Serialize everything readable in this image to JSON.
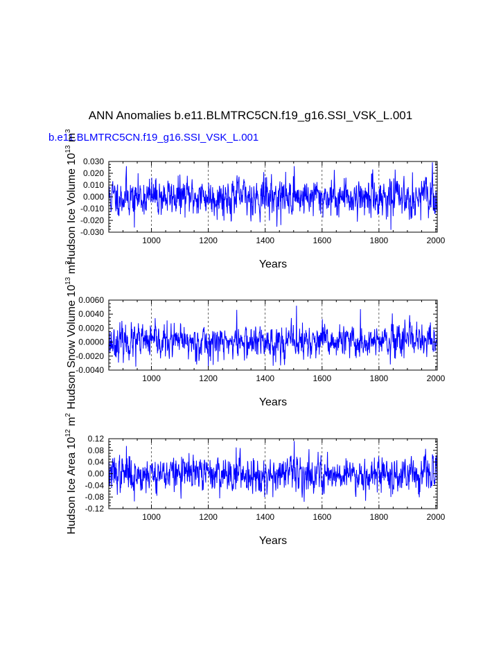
{
  "title": "ANN Anomalies b.e11.BLMTRC5CN.f19_g16.SSI_VSK_L.001",
  "case_label": "b.e11.BLMTRC5CN.f19_g16.SSI_VSK_L.001",
  "series_color": "#0000ff",
  "chart_data": [
    {
      "type": "line",
      "name": "panel-ice-volume",
      "xlabel": "Years",
      "ylabel": "Hudson Ice Volume 10",
      "ylabel_exp": "13",
      "ylabel_units": "m",
      "ylabel_units_exp": "3",
      "xlim": [
        850,
        2005
      ],
      "ylim": [
        -0.03,
        0.03
      ],
      "xticks": [
        1000,
        1200,
        1400,
        1600,
        1800,
        2000
      ],
      "yticks": [
        "0.030",
        "0.020",
        "0.010",
        "0.000",
        "-0.010",
        "-0.020",
        "-0.030"
      ],
      "ytick_values": [
        0.03,
        0.02,
        0.01,
        0.0,
        -0.01,
        -0.02,
        -0.03
      ],
      "grid_x": [
        1000,
        1200,
        1400,
        1600,
        1800
      ],
      "series_seed": 11,
      "series_amp": 0.0075,
      "x_start": 850,
      "x_end": 2005,
      "spikes": [
        [
          912,
          0.026
        ],
        [
          1502,
          0.026
        ],
        [
          1842,
          -0.028
        ],
        [
          940,
          -0.026
        ],
        [
          1455,
          -0.024
        ],
        [
          1395,
          0.021
        ]
      ]
    },
    {
      "type": "line",
      "name": "panel-snow-volume",
      "xlabel": "Years",
      "ylabel": "Hudson Snow Volume 10",
      "ylabel_exp": "13",
      "ylabel_units": "m",
      "ylabel_units_exp": "3",
      "xlim": [
        850,
        2005
      ],
      "ylim": [
        -0.004,
        0.006
      ],
      "xticks": [
        1000,
        1200,
        1400,
        1600,
        1800,
        2000
      ],
      "yticks": [
        "0.0060",
        "0.0040",
        "0.0020",
        "0.0000",
        "-0.0020",
        "-0.0040"
      ],
      "ytick_values": [
        0.006,
        0.004,
        0.002,
        0.0,
        -0.002,
        -0.004
      ],
      "grid_x": [
        1000,
        1200,
        1400,
        1600,
        1800
      ],
      "series_seed": 23,
      "series_amp": 0.0011,
      "x_start": 850,
      "x_end": 2005,
      "spikes": [
        [
          1510,
          0.0052
        ],
        [
          1735,
          0.0047
        ],
        [
          1300,
          0.0046
        ],
        [
          1200,
          -0.0035
        ],
        [
          945,
          -0.0035
        ],
        [
          1840,
          -0.0032
        ]
      ]
    },
    {
      "type": "line",
      "name": "panel-ice-area",
      "xlabel": "Years",
      "ylabel": "Hudson Ice Area 10",
      "ylabel_exp": "12",
      "ylabel_units": "m",
      "ylabel_units_exp": "2",
      "xlim": [
        850,
        2005
      ],
      "ylim": [
        -0.12,
        0.12
      ],
      "xticks": [
        1000,
        1200,
        1400,
        1600,
        1800,
        2000
      ],
      "yticks": [
        "0.12",
        "0.08",
        "0.04",
        "0.00",
        "-0.04",
        "-0.08",
        "-0.12"
      ],
      "ytick_values": [
        0.12,
        0.08,
        0.04,
        0.0,
        -0.04,
        -0.08,
        -0.12
      ],
      "grid_x": [
        1000,
        1200,
        1400,
        1600,
        1800
      ],
      "series_seed": 37,
      "series_amp": 0.028,
      "x_start": 850,
      "x_end": 2005,
      "spikes": [
        [
          1502,
          0.112
        ],
        [
          912,
          0.095
        ],
        [
          940,
          -0.095
        ],
        [
          1842,
          -0.08
        ],
        [
          1398,
          -0.08
        ],
        [
          1298,
          0.09
        ]
      ]
    }
  ]
}
